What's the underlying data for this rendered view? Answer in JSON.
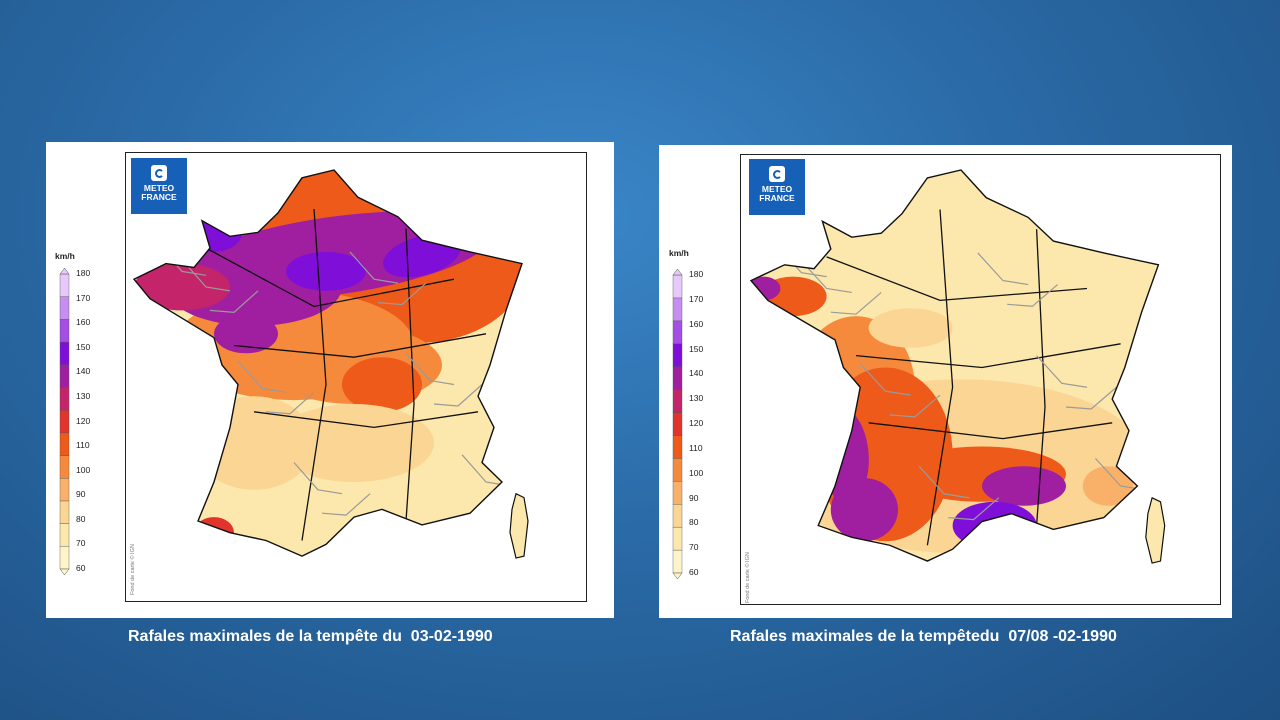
{
  "maps": [
    {
      "logo_lines": [
        "METEO",
        "FRANCE"
      ],
      "unit": "km/h",
      "legend_ticks": [
        "180",
        "170",
        "160",
        "150",
        "140",
        "130",
        "120",
        "110",
        "100",
        "90",
        "80",
        "70",
        "60"
      ],
      "credit": "Fond de carte © IGN",
      "caption": "Rafales maximales de la tempête du  03-02-1990",
      "pattern": "north"
    },
    {
      "logo_lines": [
        "METEO",
        "FRANCE"
      ],
      "unit": "km/h",
      "legend_ticks": [
        "180",
        "170",
        "160",
        "150",
        "140",
        "130",
        "120",
        "110",
        "100",
        "90",
        "80",
        "70",
        "60"
      ],
      "credit": "Fond de carte © IGN",
      "caption": "Rafales maximales de la tempêtedu  07/08 -02-1990",
      "pattern": "southwest"
    }
  ],
  "legend_colors": [
    "#fdf5c9",
    "#fce7ad",
    "#fbd593",
    "#f9b16a",
    "#f58a3d",
    "#ee5a1a",
    "#e0342c",
    "#c4246a",
    "#a01fa0",
    "#7f0fd8",
    "#a44ee6",
    "#c68ef0",
    "#e6c8fa"
  ]
}
